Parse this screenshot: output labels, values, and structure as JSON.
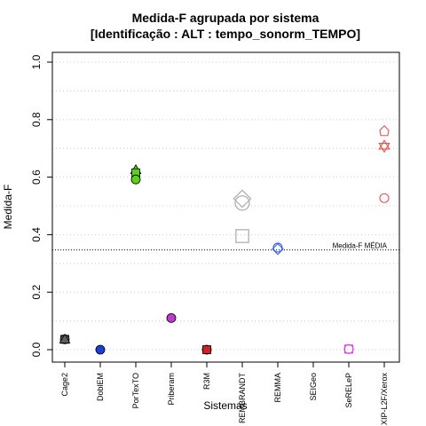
{
  "chart_data": {
    "type": "scatter",
    "title": "Medida-F agrupada por sistema",
    "subtitle": "[Identificação : ALT : tempo_sonorm_TEMPO]",
    "xlabel": "Sistemas",
    "ylabel": "Medida-F",
    "ylim": [
      0,
      1
    ],
    "yticks": [
      "0.0",
      "0.2",
      "0.4",
      "0.6",
      "0.8",
      "1.0"
    ],
    "grid": "horizontal dotted",
    "categories": [
      "Cage2",
      "DoblEM",
      "PorTexTO",
      "Priberam",
      "R3M",
      "REMBRANDT",
      "REMMA",
      "SEIGeo",
      "SeRELeP",
      "XIP-L2F/Xerox"
    ],
    "reference_line": {
      "label": "Medida-F MÉDIA",
      "value": 0.347
    },
    "colors": {
      "Cage2": "#606060",
      "DoblEM": "#1a3fd6",
      "PorTexTO": "#5ad11a",
      "Priberam": "#c03ad0",
      "R3M": "#d0202a",
      "REMBRANDT": "#b0b0b0",
      "REMMA": "#3a5ee0",
      "SEIGeo": "#000000",
      "SeRELeP": "#e040e8",
      "XIP-L2F/Xerox": "#e85050"
    },
    "points": [
      {
        "category": "Cage2",
        "y": 0.036,
        "shape": "square",
        "filled": true
      },
      {
        "category": "Cage2",
        "y": 0.036,
        "shape": "circle",
        "filled": true
      },
      {
        "category": "Cage2",
        "y": 0.036,
        "shape": "triangle",
        "filled": true
      },
      {
        "category": "DoblEM",
        "y": 0.0,
        "shape": "circle",
        "filled": true
      },
      {
        "category": "PorTexTO",
        "y": 0.625,
        "shape": "triangle",
        "filled": true
      },
      {
        "category": "PorTexTO",
        "y": 0.615,
        "shape": "square",
        "filled": true
      },
      {
        "category": "PorTexTO",
        "y": 0.592,
        "shape": "circle",
        "filled": true
      },
      {
        "category": "Priberam",
        "y": 0.11,
        "shape": "circle",
        "filled": true
      },
      {
        "category": "R3M",
        "y": 0.0,
        "shape": "circle",
        "filled": true
      },
      {
        "category": "R3M",
        "y": 0.0,
        "shape": "square",
        "filled": true
      },
      {
        "category": "REMBRANDT",
        "y": 0.525,
        "shape": "diamond",
        "filled": false
      },
      {
        "category": "REMBRANDT",
        "y": 0.51,
        "shape": "circle",
        "filled": false
      },
      {
        "category": "REMBRANDT",
        "y": 0.395,
        "shape": "square",
        "filled": false
      },
      {
        "category": "REMMA",
        "y": 0.355,
        "shape": "circle",
        "filled": false
      },
      {
        "category": "REMMA",
        "y": 0.35,
        "shape": "diamond",
        "filled": false
      },
      {
        "category": "SeRELeP",
        "y": 0.002,
        "shape": "square",
        "filled": false
      },
      {
        "category": "SeRELeP",
        "y": 0.002,
        "shape": "circle",
        "filled": false
      },
      {
        "category": "XIP-L2F/Xerox",
        "y": 0.76,
        "shape": "house",
        "filled": false
      },
      {
        "category": "XIP-L2F/Xerox",
        "y": 0.71,
        "shape": "triangle",
        "filled": false
      },
      {
        "category": "XIP-L2F/Xerox",
        "y": 0.705,
        "shape": "triangle-down",
        "filled": false
      },
      {
        "category": "XIP-L2F/Xerox",
        "y": 0.527,
        "shape": "circle",
        "filled": false
      }
    ]
  }
}
